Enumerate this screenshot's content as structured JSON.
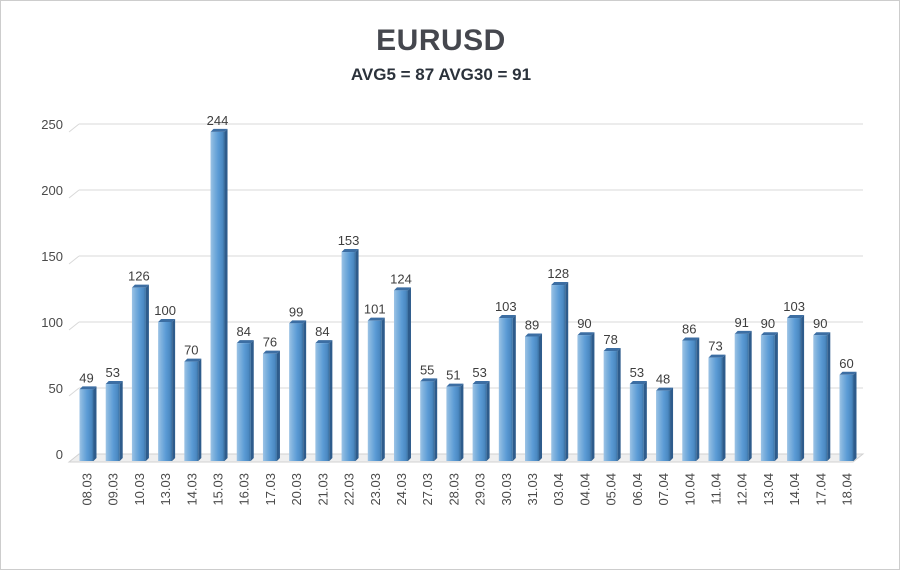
{
  "page": {
    "background": "#ffffff",
    "border_color": "#cdcdcd"
  },
  "chart_data": {
    "type": "bar",
    "title": "EURUSD",
    "subtitle": "AVG5 = 87 AVG30 = 91",
    "avg5": 87,
    "avg30": 91,
    "categories": [
      "08.03",
      "09.03",
      "10.03",
      "13.03",
      "14.03",
      "15.03",
      "16.03",
      "17.03",
      "20.03",
      "21.03",
      "22.03",
      "23.03",
      "24.03",
      "27.03",
      "28.03",
      "29.03",
      "30.03",
      "31.03",
      "03.04",
      "04.04",
      "05.04",
      "06.04",
      "07.04",
      "10.04",
      "11.04",
      "12.04",
      "13.04",
      "14.04",
      "17.04",
      "18.04"
    ],
    "values": [
      49,
      53,
      126,
      100,
      70,
      244,
      84,
      76,
      99,
      84,
      153,
      101,
      124,
      55,
      51,
      53,
      103,
      89,
      128,
      90,
      78,
      53,
      48,
      86,
      73,
      91,
      90,
      103,
      90,
      60
    ],
    "xlabel": "",
    "ylabel": "",
    "ylim": [
      0,
      250
    ],
    "yticks": [
      0,
      50,
      100,
      150,
      200,
      250
    ],
    "grid": true,
    "legend": "none",
    "style": "3d-column",
    "colors": {
      "title": "#45474e",
      "subtitle": "#2b323b",
      "bar_light": "#9cc3e5",
      "bar_mid": "#5b9bd5",
      "bar_dark": "#3a6f9f",
      "bar_side": "#2e5c8c",
      "bar_top": "#3c6ea3",
      "gridline": "#d9d9d9",
      "floor_fill": "#efefef",
      "floor_edge": "#d2d2d2",
      "value_label": "#3e3e3e",
      "axis_label": "#4a4a4a"
    }
  }
}
